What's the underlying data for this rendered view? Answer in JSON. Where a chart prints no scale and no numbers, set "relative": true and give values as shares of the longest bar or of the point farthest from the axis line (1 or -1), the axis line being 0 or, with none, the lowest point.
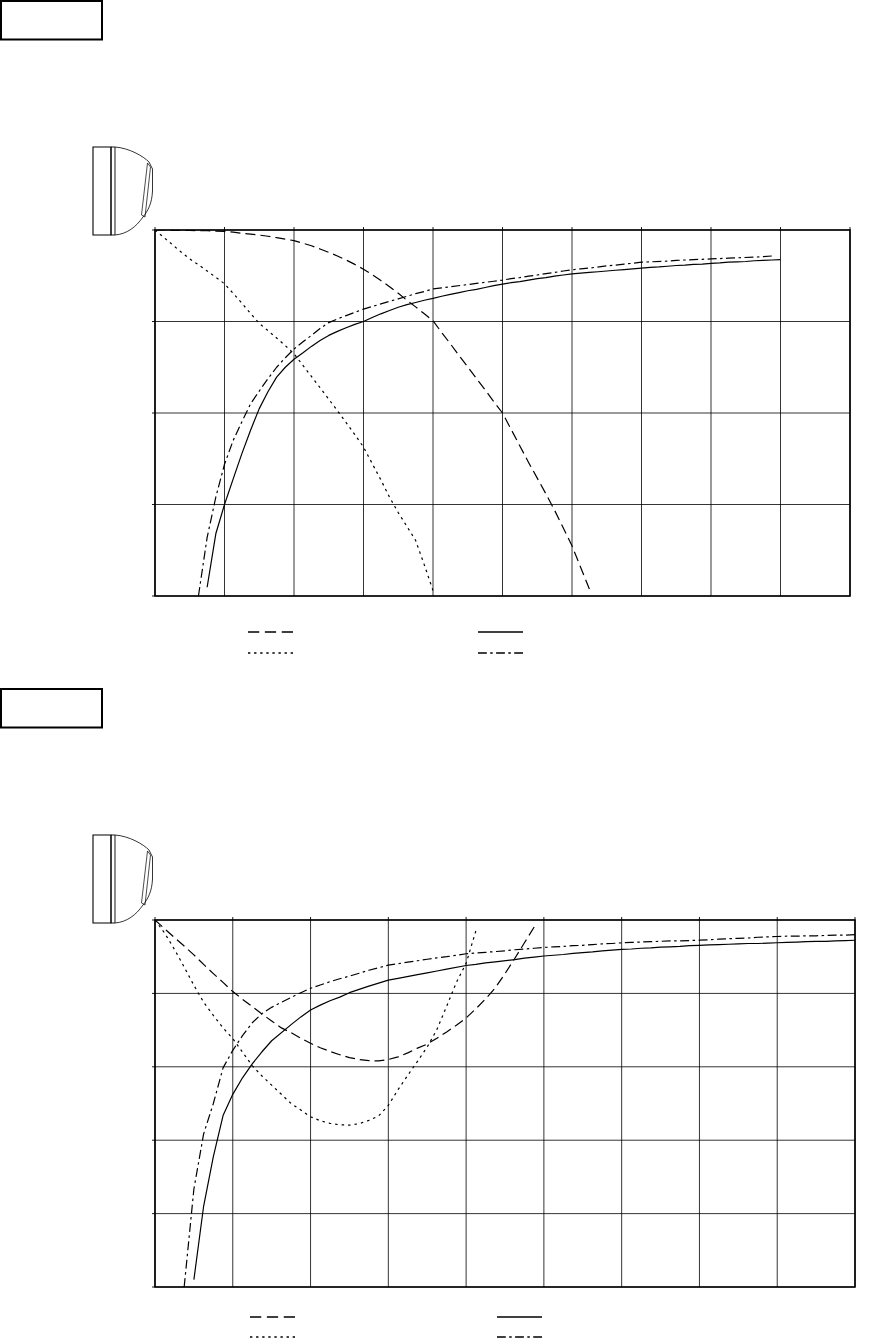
{
  "chart_data": [
    {
      "type": "line",
      "relative": true,
      "grid": true,
      "categories": [
        null,
        null,
        null,
        null,
        null,
        null,
        null,
        null,
        null,
        null,
        null,
        null,
        null,
        null,
        null,
        null,
        null,
        null,
        null,
        null,
        null,
        null,
        null,
        null,
        null,
        null,
        null,
        null,
        null,
        null,
        null,
        null,
        null,
        null,
        null,
        null,
        null,
        null,
        null,
        null,
        null,
        null,
        null,
        null,
        null,
        null,
        null,
        null,
        null,
        null,
        null,
        null,
        null,
        null,
        null,
        null,
        null,
        null,
        null,
        null,
        null,
        null,
        null,
        null,
        null,
        null,
        null,
        null,
        null,
        null,
        null,
        null,
        null,
        null,
        null,
        null,
        null,
        null,
        null,
        null,
        null
      ],
      "series": [
        {
          "color": "#000000",
          "line_style": "dashed",
          "values": [
            1,
            1,
            0.999,
            0.999,
            0.999,
            0.998,
            0.998,
            0.997,
            0.996,
            0.994,
            0.991,
            0.989,
            0.986,
            0.983,
            0.979,
            0.975,
            0.971,
            0.964,
            0.957,
            0.948,
            0.939,
            0.929,
            0.918,
            0.906,
            0.893,
            0.878,
            0.862,
            0.845,
            0.827,
            0.808,
            0.79,
            0.771,
            0.752,
            0.72,
            0.689,
            0.657,
            0.626,
            0.594,
            0.563,
            0.531,
            0.5,
            0.455,
            0.41,
            0.365,
            0.322,
            0.279,
            0.234,
            0.186,
            0.137,
            0.078,
            0.019,
            null,
            null,
            null,
            null,
            null,
            null,
            null,
            null,
            null,
            null,
            null,
            null,
            null,
            null,
            null,
            null,
            null,
            null,
            null,
            null,
            null,
            null,
            null,
            null,
            null,
            null,
            null,
            null,
            null,
            null
          ]
        },
        {
          "color": "#000000",
          "line_style": "solid",
          "values": [
            null,
            null,
            null,
            null,
            null,
            null,
            0.024,
            0.17,
            0.25,
            0.32,
            0.389,
            0.453,
            0.512,
            0.558,
            0.598,
            0.625,
            0.647,
            0.664,
            0.682,
            0.698,
            0.712,
            0.723,
            0.733,
            0.742,
            0.75,
            0.761,
            0.771,
            0.78,
            0.789,
            0.796,
            0.802,
            0.808,
            0.813,
            0.819,
            0.824,
            0.829,
            0.834,
            0.838,
            0.843,
            0.848,
            0.852,
            0.856,
            0.859,
            0.863,
            0.867,
            0.87,
            0.874,
            0.877,
            0.88,
            0.882,
            0.884,
            0.886,
            0.888,
            0.89,
            0.892,
            0.894,
            0.896,
            0.898,
            0.899,
            0.901,
            0.903,
            0.904,
            0.906,
            0.907,
            0.909,
            0.91,
            0.912,
            0.913,
            0.914,
            0.916,
            0.917,
            0.918,
            0.919,
            null,
            null,
            null,
            null,
            null,
            null,
            null,
            null
          ]
        },
        {
          "color": "#000000",
          "line_style": "dotted",
          "values": [
            1,
            0.98,
            0.96,
            0.94,
            0.921,
            0.905,
            0.888,
            0.871,
            0.853,
            0.827,
            0.8,
            0.772,
            0.745,
            0.725,
            0.705,
            0.684,
            0.662,
            0.631,
            0.6,
            0.569,
            0.538,
            0.506,
            0.474,
            0.441,
            0.407,
            0.362,
            0.317,
            0.27,
            0.228,
            0.19,
            0.152,
            0.085,
            0.015,
            null,
            null,
            null,
            null,
            null,
            null,
            null,
            null,
            null,
            null,
            null,
            null,
            null,
            null,
            null,
            null,
            null,
            null,
            null,
            null,
            null,
            null,
            null,
            null,
            null,
            null,
            null,
            null,
            null,
            null,
            null,
            null,
            null,
            null,
            null,
            null,
            null,
            null,
            null,
            null,
            null,
            null,
            null,
            null,
            null,
            null,
            null,
            null
          ]
        },
        {
          "color": "#000000",
          "line_style": "dashdot",
          "values": [
            null,
            null,
            null,
            null,
            null,
            0,
            0.16,
            0.27,
            0.36,
            0.425,
            0.476,
            0.525,
            0.56,
            0.594,
            0.625,
            0.651,
            0.675,
            0.694,
            0.712,
            0.731,
            0.747,
            0.757,
            0.766,
            0.775,
            0.784,
            0.791,
            0.798,
            0.805,
            0.812,
            0.819,
            0.826,
            0.832,
            0.839,
            0.842,
            0.845,
            0.848,
            0.851,
            0.854,
            0.857,
            0.86,
            0.863,
            0.867,
            0.87,
            0.874,
            0.877,
            0.881,
            0.884,
            0.888,
            0.891,
            0.894,
            0.896,
            0.899,
            0.902,
            0.904,
            0.907,
            0.909,
            0.912,
            0.913,
            0.914,
            0.915,
            0.917,
            0.918,
            0.919,
            0.92,
            0.921,
            0.922,
            0.923,
            0.924,
            0.925,
            0.926,
            0.927,
            0.929,
            null,
            null,
            null,
            null,
            null,
            null,
            null,
            null,
            null
          ]
        }
      ]
    },
    {
      "type": "line",
      "relative": true,
      "grid": true,
      "categories": [
        null,
        null,
        null,
        null,
        null,
        null,
        null,
        null,
        null,
        null,
        null,
        null,
        null,
        null,
        null,
        null,
        null,
        null,
        null,
        null,
        null,
        null,
        null,
        null,
        null,
        null,
        null,
        null,
        null,
        null,
        null,
        null,
        null,
        null,
        null,
        null,
        null,
        null,
        null,
        null,
        null,
        null,
        null,
        null,
        null,
        null,
        null,
        null,
        null,
        null,
        null,
        null,
        null,
        null,
        null,
        null,
        null,
        null,
        null,
        null,
        null,
        null,
        null,
        null,
        null,
        null,
        null,
        null,
        null,
        null,
        null,
        null,
        null
      ],
      "series": [
        {
          "color": "#000000",
          "line_style": "dashed",
          "values": [
            1,
            0.976,
            0.952,
            0.929,
            0.905,
            0.879,
            0.854,
            0.83,
            0.805,
            0.784,
            0.764,
            0.744,
            0.725,
            0.706,
            0.693,
            0.678,
            0.664,
            0.652,
            0.642,
            0.633,
            0.625,
            0.62,
            0.617,
            0.616,
            0.62,
            0.627,
            0.638,
            0.651,
            0.662,
            0.678,
            0.695,
            0.713,
            0.733,
            0.758,
            0.785,
            0.815,
            0.854,
            0.895,
            0.938,
            0.981,
            null,
            null,
            null,
            null,
            null,
            null,
            null,
            null,
            null,
            null,
            null,
            null,
            null,
            null,
            null,
            null,
            null,
            null,
            null,
            null,
            null,
            null,
            null,
            null,
            null,
            null,
            null,
            null,
            null,
            null,
            null,
            null,
            null
          ]
        },
        {
          "color": "#000000",
          "line_style": "solid",
          "values": [
            null,
            null,
            null,
            null,
            0.02,
            0.22,
            0.355,
            0.467,
            0.525,
            0.57,
            0.608,
            0.641,
            0.671,
            0.693,
            0.715,
            0.736,
            0.755,
            0.768,
            0.78,
            0.79,
            0.802,
            0.811,
            0.82,
            0.828,
            0.836,
            0.841,
            0.846,
            0.851,
            0.856,
            0.861,
            0.866,
            0.871,
            0.876,
            0.879,
            0.883,
            0.886,
            0.889,
            0.892,
            0.896,
            0.899,
            0.902,
            0.904,
            0.906,
            0.909,
            0.911,
            0.913,
            0.916,
            0.918,
            0.92,
            0.921,
            0.923,
            0.924,
            0.926,
            0.927,
            0.928,
            0.93,
            0.931,
            0.932,
            0.933,
            0.934,
            0.935,
            0.936,
            0.936,
            0.937,
            0.938,
            0.939,
            0.94,
            0.941,
            0.942,
            0.942,
            0.943,
            0.944,
            0.945
          ]
        },
        {
          "color": "#000000",
          "line_style": "dotted",
          "values": [
            1,
            0.964,
            0.92,
            0.872,
            0.822,
            0.776,
            0.74,
            0.706,
            0.677,
            0.64,
            0.603,
            0.575,
            0.55,
            0.525,
            0.5,
            0.482,
            0.464,
            0.453,
            0.446,
            0.442,
            0.441,
            0.445,
            0.454,
            0.466,
            0.495,
            0.538,
            0.577,
            0.615,
            0.654,
            0.702,
            0.765,
            0.83,
            0.882,
            0.97,
            null,
            null,
            null,
            null,
            null,
            null,
            null,
            null,
            null,
            null,
            null,
            null,
            null,
            null,
            null,
            null,
            null,
            null,
            null,
            null,
            null,
            null,
            null,
            null,
            null,
            null,
            null,
            null,
            null,
            null,
            null,
            null,
            null,
            null,
            null,
            null,
            null,
            null,
            null
          ]
        },
        {
          "color": "#000000",
          "line_style": "dashdot",
          "values": [
            null,
            null,
            null,
            0,
            0.267,
            0.417,
            0.5,
            0.597,
            0.645,
            0.685,
            0.72,
            0.745,
            0.762,
            0.776,
            0.789,
            0.802,
            0.814,
            0.823,
            0.832,
            0.84,
            0.847,
            0.855,
            0.863,
            0.87,
            0.877,
            0.881,
            0.885,
            0.889,
            0.893,
            0.897,
            0.9,
            0.904,
            0.908,
            0.91,
            0.912,
            0.914,
            0.916,
            0.919,
            0.921,
            0.923,
            0.925,
            0.927,
            0.928,
            0.93,
            0.931,
            0.933,
            0.935,
            0.936,
            0.938,
            0.939,
            0.94,
            0.941,
            0.942,
            0.943,
            0.943,
            0.944,
            0.945,
            0.946,
            0.948,
            0.949,
            0.95,
            0.951,
            0.953,
            0.954,
            0.955,
            0.956,
            0.956,
            0.957,
            0.957,
            0.958,
            0.959,
            0.959,
            0.96
          ]
        }
      ]
    }
  ]
}
